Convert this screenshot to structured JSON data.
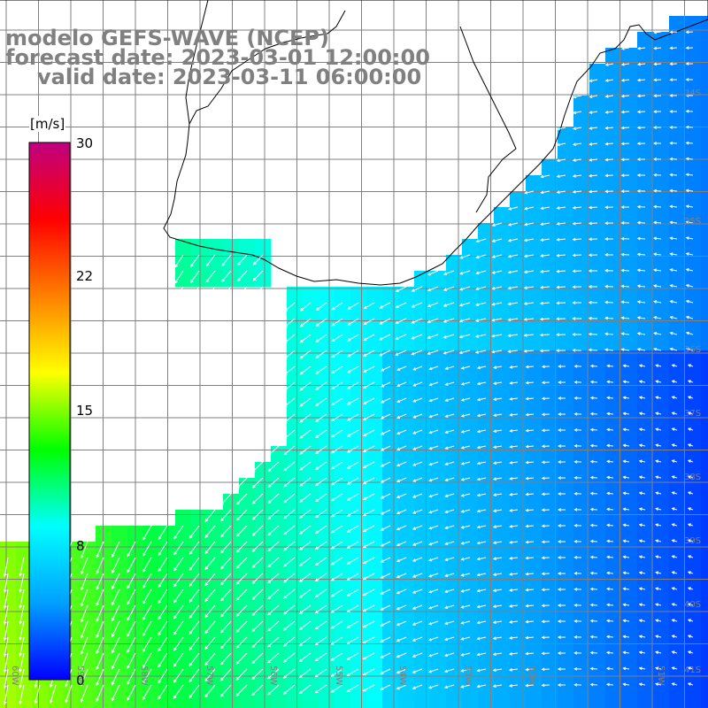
{
  "title": {
    "line1": "modelo GEFS-WAVE (NCEP)",
    "line2": "forecast date: 2023-03-01 12:00:00",
    "line3": "valid date: 2023-03-11 06:00:00"
  },
  "colorbar": {
    "unit": "[m/s]",
    "min": 0,
    "max": 30,
    "ticks": [
      "0",
      "8",
      "15",
      "22",
      "30"
    ],
    "colors": [
      "#0000ff",
      "#00a0ff",
      "#00ffff",
      "#00ff00",
      "#ffff00",
      "#ff8000",
      "#ff0000",
      "#c00080"
    ]
  },
  "map": {
    "lat_labels": [
      "34S",
      "35S",
      "36S",
      "37S",
      "38S",
      "39S",
      "40S",
      "41S"
    ],
    "lon_labels": [
      "60W",
      "59W",
      "58W",
      "57W",
      "56W",
      "55W",
      "54W",
      "53W",
      "52W",
      "51W"
    ],
    "grid_color": "#808080",
    "coast_color": "#000000",
    "arrow_color": "#ffffff"
  }
}
